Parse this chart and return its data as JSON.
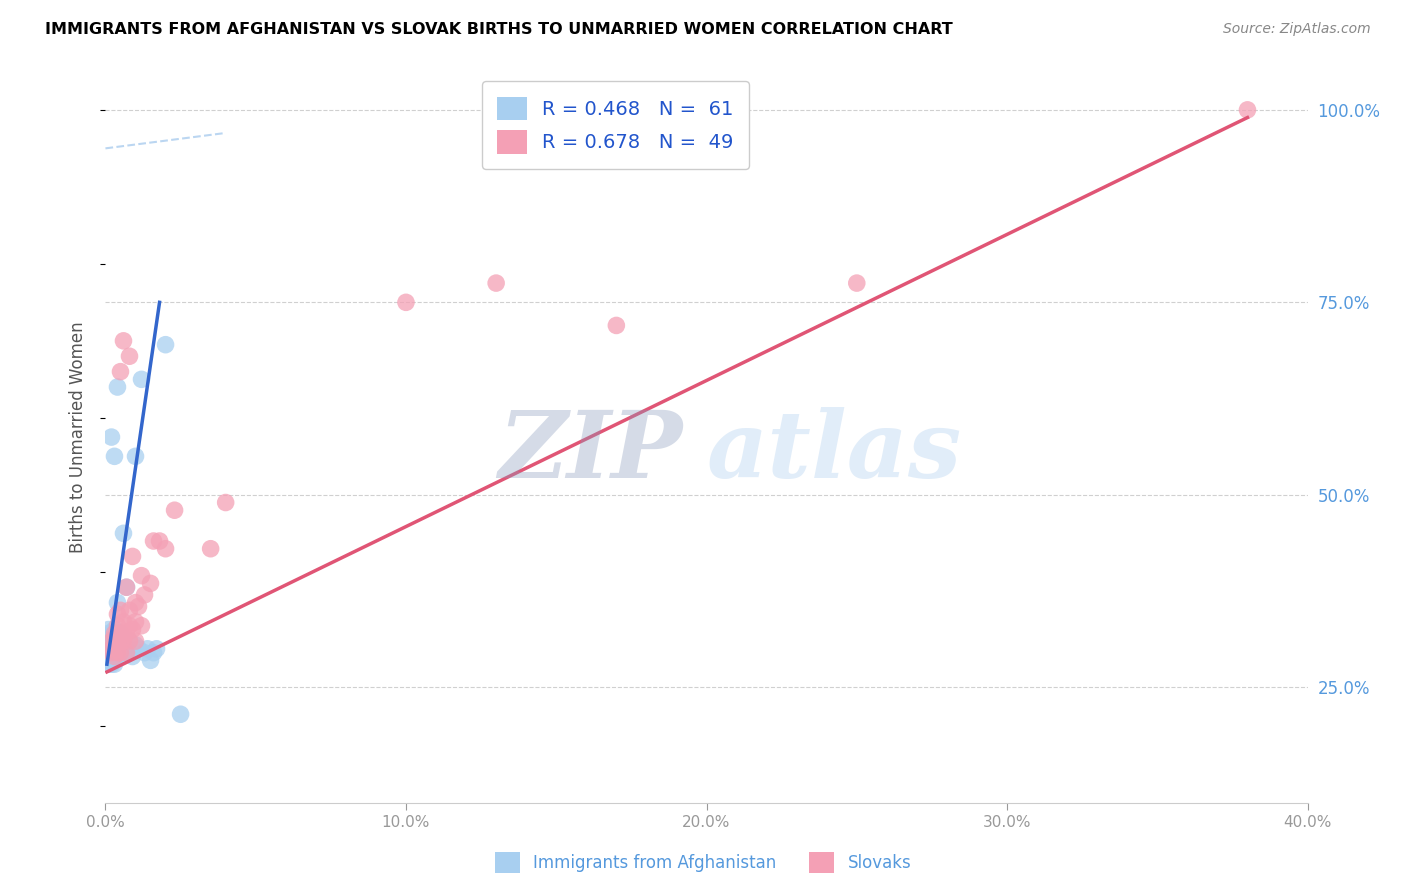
{
  "title": "IMMIGRANTS FROM AFGHANISTAN VS SLOVAK BIRTHS TO UNMARRIED WOMEN CORRELATION CHART",
  "source": "Source: ZipAtlas.com",
  "ylabel": "Births to Unmarried Women",
  "legend_blue_label": "R = 0.468   N =  61",
  "legend_pink_label": "R = 0.678   N =  49",
  "blue_color": "#a8cff0",
  "pink_color": "#f4a0b5",
  "blue_line_color": "#3366cc",
  "pink_line_color": "#e05575",
  "blue_scatter_x": [
    0.001,
    0.001,
    0.001,
    0.001,
    0.001,
    0.001,
    0.001,
    0.001,
    0.001,
    0.001,
    0.002,
    0.002,
    0.002,
    0.002,
    0.002,
    0.002,
    0.002,
    0.002,
    0.002,
    0.002,
    0.002,
    0.003,
    0.003,
    0.003,
    0.003,
    0.003,
    0.003,
    0.003,
    0.003,
    0.003,
    0.003,
    0.004,
    0.004,
    0.004,
    0.004,
    0.004,
    0.004,
    0.005,
    0.005,
    0.005,
    0.005,
    0.006,
    0.006,
    0.006,
    0.007,
    0.007,
    0.008,
    0.008,
    0.009,
    0.01,
    0.01,
    0.011,
    0.012,
    0.013,
    0.014,
    0.015,
    0.016,
    0.017,
    0.02,
    0.025,
    0.004
  ],
  "blue_scatter_y": [
    0.3,
    0.295,
    0.29,
    0.285,
    0.28,
    0.31,
    0.305,
    0.315,
    0.32,
    0.325,
    0.295,
    0.29,
    0.285,
    0.28,
    0.305,
    0.3,
    0.31,
    0.315,
    0.32,
    0.295,
    0.575,
    0.29,
    0.295,
    0.3,
    0.305,
    0.31,
    0.315,
    0.32,
    0.325,
    0.28,
    0.55,
    0.29,
    0.295,
    0.31,
    0.315,
    0.32,
    0.36,
    0.29,
    0.3,
    0.31,
    0.32,
    0.3,
    0.31,
    0.45,
    0.295,
    0.38,
    0.295,
    0.31,
    0.29,
    0.305,
    0.55,
    0.3,
    0.65,
    0.295,
    0.3,
    0.285,
    0.295,
    0.3,
    0.695,
    0.215,
    0.64
  ],
  "pink_scatter_x": [
    0.002,
    0.002,
    0.002,
    0.003,
    0.003,
    0.003,
    0.003,
    0.004,
    0.004,
    0.004,
    0.004,
    0.004,
    0.005,
    0.005,
    0.005,
    0.005,
    0.005,
    0.006,
    0.006,
    0.006,
    0.006,
    0.007,
    0.007,
    0.007,
    0.008,
    0.008,
    0.008,
    0.008,
    0.009,
    0.009,
    0.01,
    0.01,
    0.01,
    0.011,
    0.012,
    0.012,
    0.013,
    0.015,
    0.016,
    0.018,
    0.02,
    0.023,
    0.035,
    0.04,
    0.1,
    0.13,
    0.17,
    0.25,
    0.38
  ],
  "pink_scatter_y": [
    0.3,
    0.295,
    0.31,
    0.29,
    0.305,
    0.315,
    0.32,
    0.295,
    0.31,
    0.32,
    0.33,
    0.345,
    0.295,
    0.31,
    0.32,
    0.35,
    0.66,
    0.31,
    0.32,
    0.335,
    0.7,
    0.295,
    0.32,
    0.38,
    0.31,
    0.33,
    0.35,
    0.68,
    0.325,
    0.42,
    0.31,
    0.335,
    0.36,
    0.355,
    0.33,
    0.395,
    0.37,
    0.385,
    0.44,
    0.44,
    0.43,
    0.48,
    0.43,
    0.49,
    0.75,
    0.775,
    0.72,
    0.775,
    1.0
  ],
  "blue_line_x": [
    0.0005,
    0.018
  ],
  "blue_line_y": [
    0.28,
    0.75
  ],
  "pink_line_x": [
    0.0005,
    0.38
  ],
  "pink_line_y": [
    0.27,
    0.99
  ],
  "dash_line_x": [
    0.0,
    0.04
  ],
  "dash_line_y": [
    0.94,
    0.98
  ],
  "watermark_zip": "ZIP",
  "watermark_atlas": "atlas",
  "xlim": [
    0.0,
    0.4
  ],
  "ylim": [
    0.1,
    1.05
  ],
  "xticks": [
    0.0,
    0.1,
    0.2,
    0.3,
    0.4
  ],
  "xtick_labels": [
    "0.0%",
    "10.0%",
    "20.0%",
    "30.0%",
    "40.0%"
  ],
  "yticks": [
    0.25,
    0.5,
    0.75,
    1.0
  ],
  "ytick_labels": [
    "25.0%",
    "50.0%",
    "75.0%",
    "100.0%"
  ],
  "grid_color": "#d0d0d0"
}
